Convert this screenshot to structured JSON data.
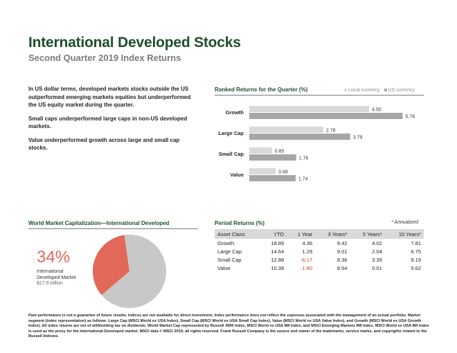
{
  "header": {
    "title": "International Developed Stocks",
    "subtitle": "Second Quarter 2019 Index Returns"
  },
  "intro": {
    "p1": "In US dollar terms, developed markets stocks outside the US outperformed emerging markets equities but underperformed the US equity market during the quarter.",
    "p2": "Small caps underperformed large caps in non-US developed markets.",
    "p3": "Value underperformed growth across large and small cap stocks."
  },
  "ranked": {
    "heading": "Ranked Returns for the Quarter (%)",
    "legend_local": "Local currency",
    "legend_us": "US currency"
  },
  "market_cap": {
    "heading": "World Market Capitalization—International Developed",
    "percent": "34%",
    "label_line1": "International",
    "label_line2": "Developed Market",
    "value": "$17.9 trillion"
  },
  "period": {
    "heading": "Period Returns (%)",
    "note": "* Annualized",
    "columns": [
      "Asset Class",
      "YTD",
      "1 Year",
      "3 Years*",
      "5 Years*",
      "10 Years*"
    ],
    "rows": [
      [
        "Growth",
        "18.89",
        "4.36",
        "9.42",
        "4.02",
        "7.81"
      ],
      [
        "Large Cap",
        "14.64",
        "1.29",
        "9.01",
        "2.04",
        "6.75"
      ],
      [
        "Small Cap",
        "12.88",
        "-6.17",
        "8.36",
        "3.39",
        "9.19"
      ],
      [
        "Value",
        "10.38",
        "-1.80",
        "8.54",
        "0.01",
        "5.62"
      ]
    ]
  },
  "footnote": "Past performance is not a guarantee of future results. Indices are not available for direct investment. Index performance does not reflect the expenses associated with the management of an actual portfolio. Market segment (index representation) as follows: Large Cap (MSCI World ex USA Index), Small Cap (MSCI World ex USA Small Cap Index), Value (MSCI World ex USA Value Index), and Growth (MSCI World ex USA Growth Index). All index returns are net of withholding tax on dividends. World Market Cap represented by Russell 3000 Index, MSCI World ex USA IMI Index, and MSCI Emerging Markets IMI Index. MSCI World ex USA IMI Index is used as the proxy for the International Developed market. MSCI data © MSCI 2019, all rights reserved. Frank Russell Company is the source and owner of the trademarks, service marks, and copyrights related to the Russell Indexes.",
  "colors": {
    "title": "#1f4e2c",
    "local_bar": "#d9d9d9",
    "us_bar": "#a6a6a6",
    "pie_highlight": "#e2685a",
    "pie_rest": "#c8c8c8",
    "negative": "#c0392b"
  },
  "chart_data": [
    {
      "type": "bar",
      "orientation": "horizontal",
      "title": "Ranked Returns for the Quarter (%)",
      "categories": [
        "Growth",
        "Large Cap",
        "Small Cap",
        "Value"
      ],
      "series": [
        {
          "name": "Local currency",
          "values": [
            4.5,
            2.78,
            0.85,
            0.99
          ]
        },
        {
          "name": "US currency",
          "values": [
            5.76,
            3.79,
            1.76,
            1.74
          ]
        }
      ],
      "xlim": [
        0,
        6.5
      ],
      "legend": "top-right",
      "grid": false
    },
    {
      "type": "pie",
      "title": "World Market Capitalization—International Developed",
      "slices": [
        {
          "name": "International Developed Market",
          "value": 34
        },
        {
          "name": "Other",
          "value": 66
        }
      ]
    }
  ]
}
